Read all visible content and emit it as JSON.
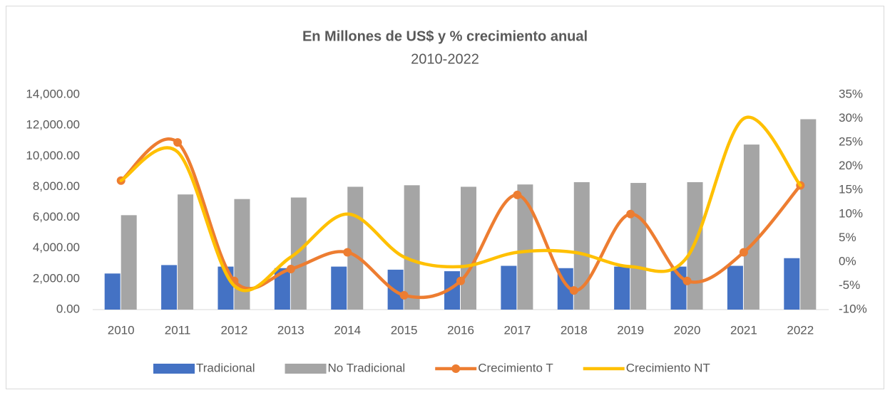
{
  "chart_data": {
    "type": "bar",
    "title": "En Millones de US$ y % crecimiento anual",
    "subtitle": "2010-2022",
    "categories": [
      "2010",
      "2011",
      "2012",
      "2013",
      "2014",
      "2015",
      "2016",
      "2017",
      "2018",
      "2019",
      "2020",
      "2021",
      "2022"
    ],
    "series": [
      {
        "name": "Tradicional",
        "type": "bar",
        "color": "#4472c4",
        "values": [
          2350,
          2900,
          2800,
          2700,
          2800,
          2600,
          2500,
          2850,
          2700,
          2800,
          2800,
          2850,
          3350
        ]
      },
      {
        "name": "No Tradicional",
        "type": "bar",
        "color": "#a5a5a5",
        "values": [
          6150,
          7500,
          7200,
          7300,
          8000,
          8100,
          8000,
          8150,
          8300,
          8250,
          8300,
          10750,
          12400
        ]
      },
      {
        "name": "Crecimiento T",
        "type": "line",
        "axis": "y2",
        "marker": true,
        "color": "#ed7d31",
        "values": [
          17,
          25,
          -4,
          -1.5,
          2,
          -7,
          -4,
          14,
          -6,
          10,
          -4,
          2,
          16
        ]
      },
      {
        "name": "Crecimiento NT",
        "type": "line",
        "axis": "y2",
        "marker": false,
        "color": "#ffc000",
        "values": [
          17,
          23,
          -5,
          1,
          10,
          1,
          -1,
          2,
          2,
          -1,
          1,
          30,
          16
        ]
      }
    ],
    "ylim": [
      0,
      14000
    ],
    "yticks": [
      {
        "value": 0,
        "label": "0.00"
      },
      {
        "value": 2000,
        "label": "2,000.00"
      },
      {
        "value": 4000,
        "label": "4,000.00"
      },
      {
        "value": 6000,
        "label": "6,000.00"
      },
      {
        "value": 8000,
        "label": "8,000.00"
      },
      {
        "value": 10000,
        "label": "10,000.00"
      },
      {
        "value": 12000,
        "label": "12,000.00"
      },
      {
        "value": 14000,
        "label": "14,000.00"
      }
    ],
    "y2lim": [
      -10,
      35
    ],
    "y2ticks": [
      {
        "value": -10,
        "label": "-10%"
      },
      {
        "value": -5,
        "label": "-5%"
      },
      {
        "value": 0,
        "label": "0%"
      },
      {
        "value": 5,
        "label": "5%"
      },
      {
        "value": 10,
        "label": "10%"
      },
      {
        "value": 15,
        "label": "15%"
      },
      {
        "value": 20,
        "label": "20%"
      },
      {
        "value": 25,
        "label": "25%"
      },
      {
        "value": 30,
        "label": "30%"
      },
      {
        "value": 35,
        "label": "35%"
      }
    ],
    "grid": false,
    "legend": "bottom"
  }
}
